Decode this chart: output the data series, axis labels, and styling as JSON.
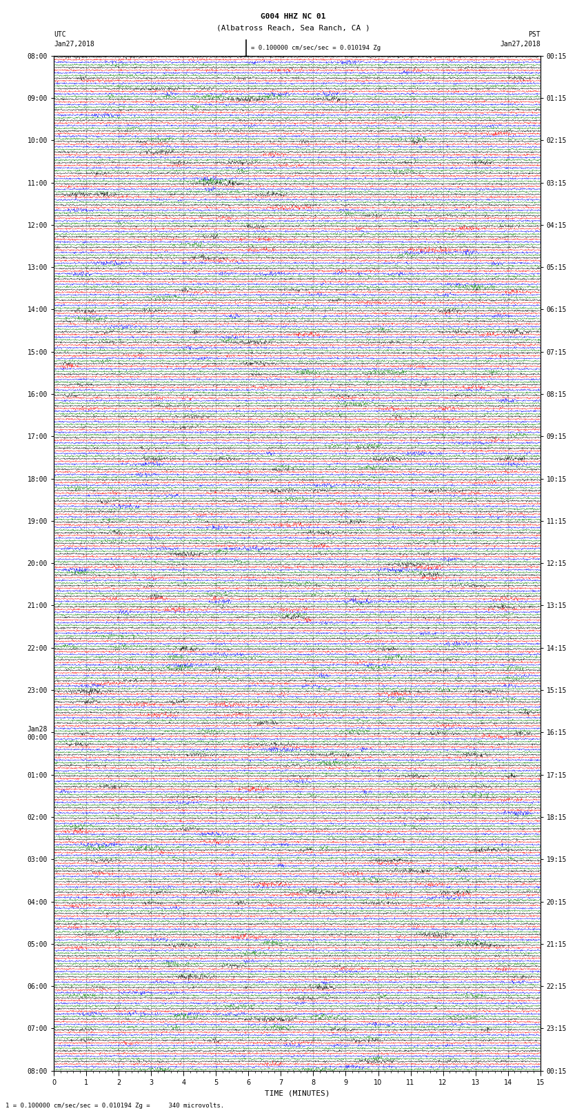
{
  "title_line1": "G004 HHZ NC 01",
  "title_line2": "(Albatross Reach, Sea Ranch, CA )",
  "left_label_top": "UTC",
  "left_label_date": "Jan27,2018",
  "right_label_top": "PST",
  "right_label_date": "Jan27,2018",
  "scale_text": "= 0.100000 cm/sec/sec = 0.010194 Zg",
  "footer_text": "1 = 0.100000 cm/sec/sec = 0.010194 Zg =     340 microvolts.",
  "xlabel": "TIME (MINUTES)",
  "xmin": 0,
  "xmax": 15,
  "background_color": "#ffffff",
  "trace_colors": [
    "black",
    "red",
    "blue",
    "green"
  ],
  "n_rows": 96,
  "traces_per_row": 4,
  "title_fontsize": 8,
  "label_fontsize": 7,
  "tick_fontsize": 7,
  "axis_fontsize": 8
}
